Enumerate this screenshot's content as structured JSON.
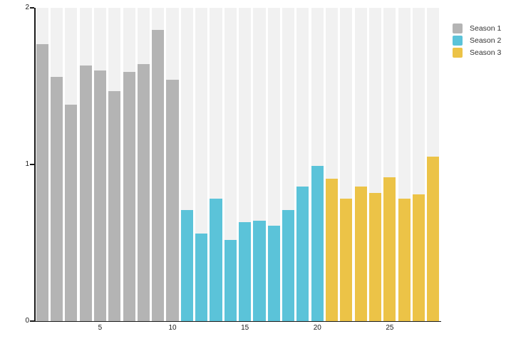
{
  "chart_data": {
    "type": "bar",
    "title": "",
    "xlabel": "",
    "ylabel": "",
    "ylim": [
      0,
      2
    ],
    "yticks": [
      0,
      1,
      2
    ],
    "xticks": [
      5,
      10,
      15,
      20,
      25
    ],
    "x_range": [
      1,
      28
    ],
    "grid": false,
    "legend_position": "top-right",
    "series": [
      {
        "name": "Season 1",
        "color": "#b4b4b4",
        "x_start": 1,
        "values": [
          1.77,
          1.56,
          1.38,
          1.63,
          1.6,
          1.47,
          1.59,
          1.64,
          1.86,
          1.54
        ]
      },
      {
        "name": "Season 2",
        "color": "#5bc3d9",
        "x_start": 11,
        "values": [
          0.71,
          0.56,
          0.78,
          0.52,
          0.63,
          0.64,
          0.61,
          0.71,
          0.86,
          0.99
        ]
      },
      {
        "name": "Season 3",
        "color": "#ecc347",
        "x_start": 21,
        "values": [
          0.91,
          0.78,
          0.86,
          0.82,
          0.92,
          0.78,
          0.81,
          1.05
        ]
      }
    ],
    "colors": {
      "plot_background_columns": "#f1f1f1",
      "page_background": "#ffffff",
      "axis": "#1a1a1a",
      "tick_label": "#1a1a1a",
      "legend_label": "#333333"
    }
  }
}
